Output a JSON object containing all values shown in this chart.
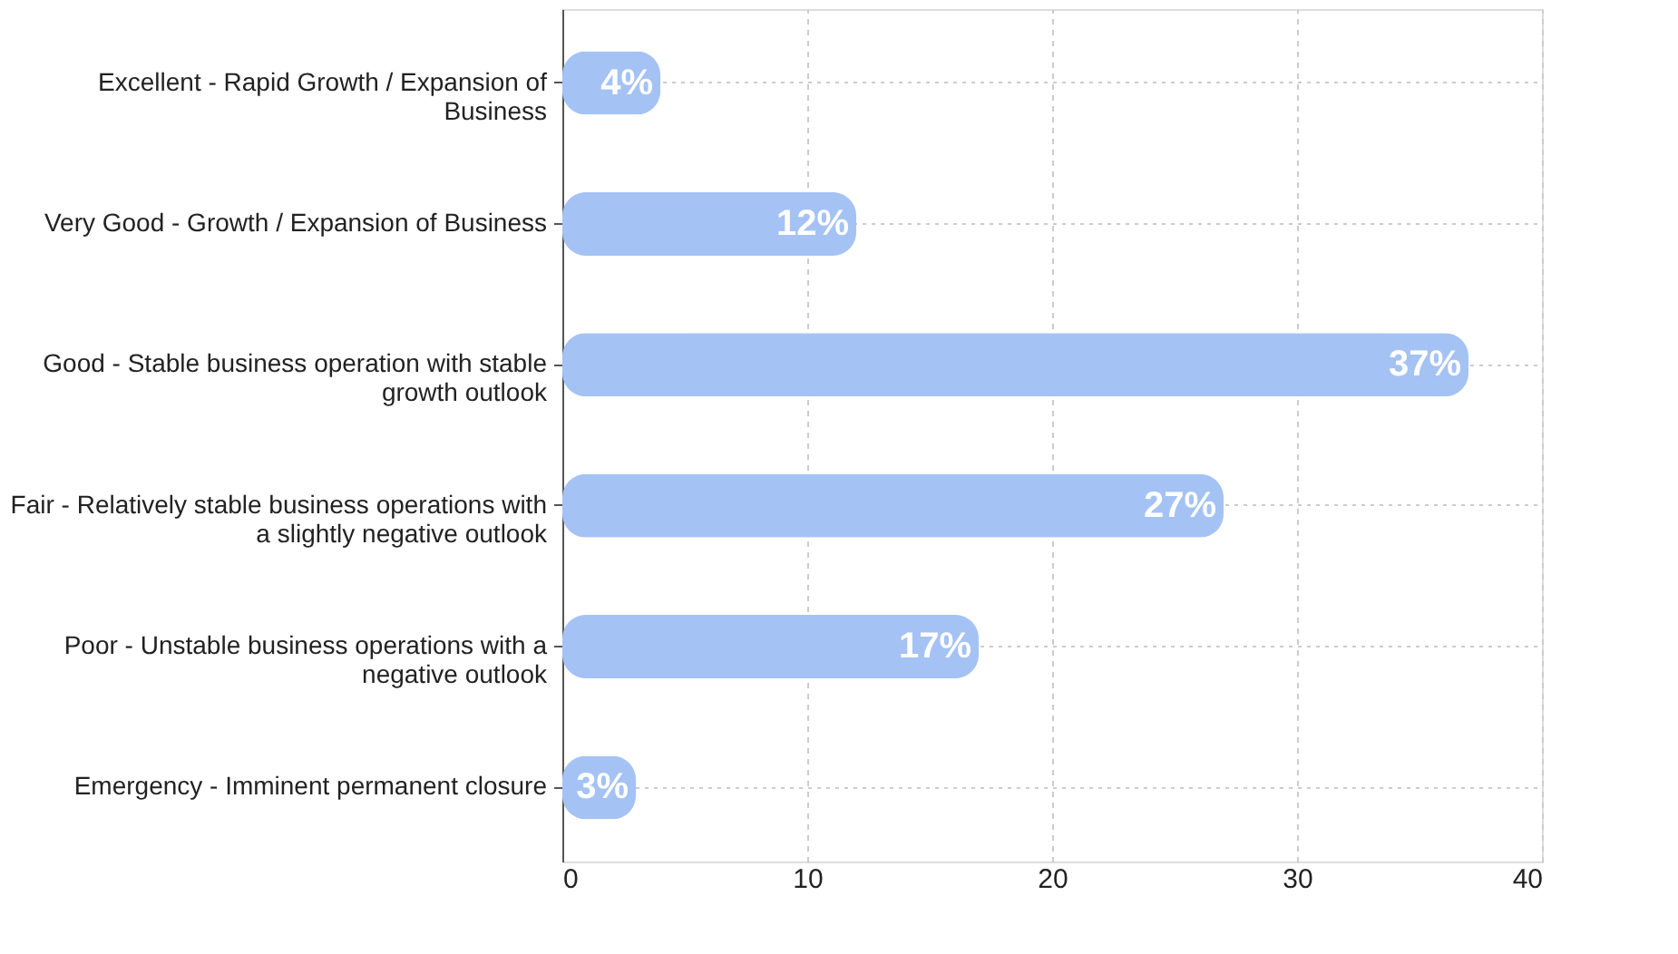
{
  "chart_data": {
    "type": "bar",
    "orientation": "horizontal",
    "categories": [
      "Excellent - Rapid Growth / Expansion of\nBusiness",
      "Very Good - Growth / Expansion of Business",
      "Good - Stable business operation with stable\ngrowth outlook",
      "Fair - Relatively stable business operations with\na slightly negative outlook",
      "Poor - Unstable business operations with a\nnegative outlook",
      "Emergency - Imminent permanent closure"
    ],
    "values": [
      4,
      12,
      37,
      27,
      17,
      3
    ],
    "value_labels": [
      "4%",
      "12%",
      "37%",
      "27%",
      "17%",
      "3%"
    ],
    "color": "#a4c2f4",
    "xlim": [
      0,
      40
    ],
    "xticks": [
      0,
      10,
      20,
      30,
      40
    ],
    "grid": true
  }
}
